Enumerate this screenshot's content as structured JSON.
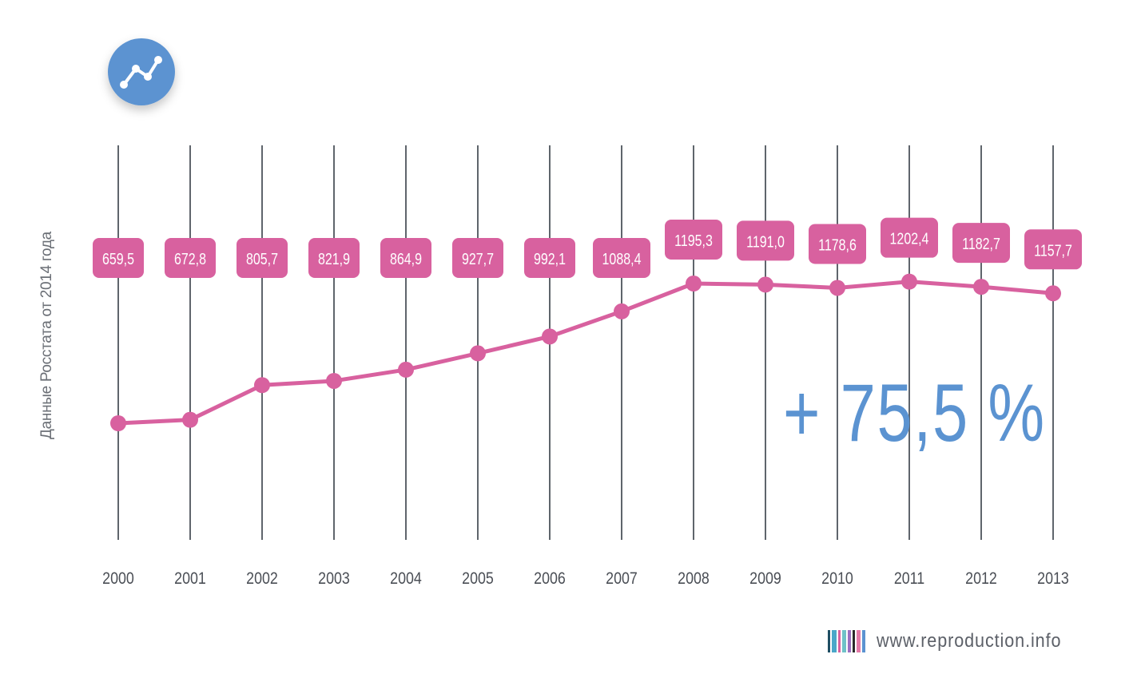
{
  "chart_data": {
    "type": "line",
    "title": "",
    "xlabel": "",
    "ylabel": "Данные  Росстата от 2014 года",
    "categories": [
      "2000",
      "2001",
      "2002",
      "2003",
      "2004",
      "2005",
      "2006",
      "2007",
      "2008",
      "2009",
      "2010",
      "2011",
      "2012",
      "2013"
    ],
    "values": [
      659.5,
      672.8,
      805.7,
      821.9,
      864.9,
      927.7,
      992.1,
      1088.4,
      1195.3,
      1191.0,
      1178.6,
      1202.4,
      1182.7,
      1157.7
    ],
    "value_labels": [
      "659,5",
      "672,8",
      "805,7",
      "821,9",
      "864,9",
      "927,7",
      "992,1",
      "1088,4",
      "1195,3",
      "1191,0",
      "1178,6",
      "1202,4",
      "1182,7",
      "1157,7"
    ],
    "grid": {
      "vertical": true,
      "horizontal": false
    },
    "legend": "none",
    "colors": {
      "line": "#d8619f",
      "label_bg": "#d8619f",
      "label_text": "#ffffff",
      "grid": "#5f656c",
      "accent": "#5b93d1"
    }
  },
  "icon": {
    "name": "line-chart-icon",
    "bg": "#5b93d1"
  },
  "growth_text": "+ 75,5 %",
  "footer": {
    "site": "www.reproduction.info",
    "barcode_colors": [
      "#1f4e63",
      "#4aa7c9",
      "#d8619f",
      "#6fc2c8",
      "#9b6fc1",
      "#2a2a2a",
      "#e47aa8",
      "#5b93d1"
    ]
  }
}
